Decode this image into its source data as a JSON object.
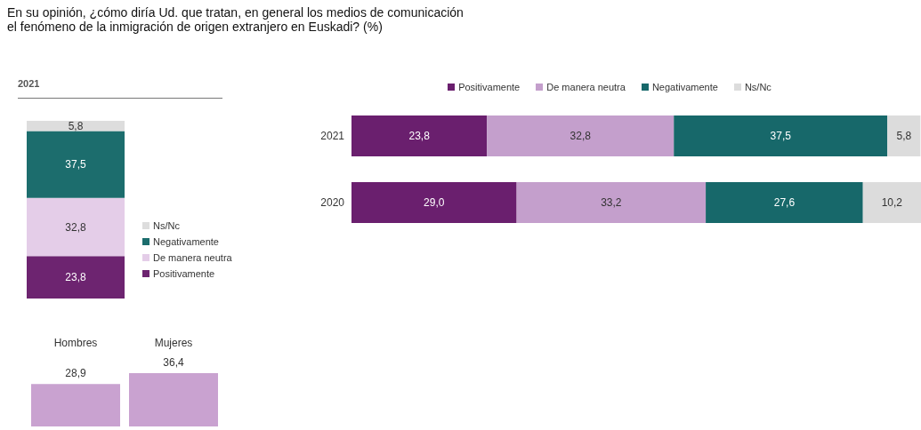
{
  "chart_data": [
    {
      "type": "bar",
      "title": "En su opinión, ¿cómo diría Ud. que tratan, en general los medios de comunicación\nel fenómeno de la inmigración de origen extranjero en Euskadi? (%)",
      "subtitle": "2021",
      "categories": [
        null
      ],
      "stacked": true,
      "legend": "right",
      "tick_labels": false,
      "series": [
        {
          "name": "Positivamente",
          "color": "#6d2470",
          "values": [
            23.8
          ],
          "value_labels": [
            "23,8"
          ]
        },
        {
          "name": "De manera neutra",
          "color": "#e4cde8",
          "values": [
            32.8
          ],
          "value_labels": [
            "32,8"
          ]
        },
        {
          "name": "Negativamente",
          "color": "#1c6d6d",
          "values": [
            37.5
          ],
          "value_labels": [
            "37,5"
          ]
        },
        {
          "name": "Ns/Nc",
          "color": "#dddddd",
          "values": [
            5.8
          ],
          "value_labels": [
            "5,8"
          ]
        }
      ]
    },
    {
      "type": "bar",
      "categories": [
        "Hombres",
        "Mujeres"
      ],
      "values": [
        28.9,
        36.4
      ],
      "color": "#c9a2d0",
      "value_labels": [
        "28,9",
        "36,4"
      ]
    },
    {
      "type": "bar",
      "orientation": "horizontal",
      "stacked": true,
      "legend": "top",
      "categories": [
        "2021",
        "2020"
      ],
      "series": [
        {
          "name": "Positivamente",
          "color": "#6a1f6e",
          "values": [
            23.8,
            29.0
          ],
          "value_labels": [
            "23,8",
            "29,0"
          ]
        },
        {
          "name": "De manera neutra",
          "color": "#c49fcc",
          "values": [
            32.8,
            33.2
          ],
          "value_labels": [
            "32,8",
            "33,2"
          ]
        },
        {
          "name": "Negativamente",
          "color": "#17686a",
          "values": [
            37.5,
            27.6
          ],
          "value_labels": [
            "37,5",
            "27,6"
          ]
        },
        {
          "name": "Ns/Nc",
          "color": "#dcdcdc",
          "values": [
            5.8,
            10.2
          ],
          "value_labels": [
            "5,8",
            "10,2"
          ]
        }
      ]
    }
  ]
}
